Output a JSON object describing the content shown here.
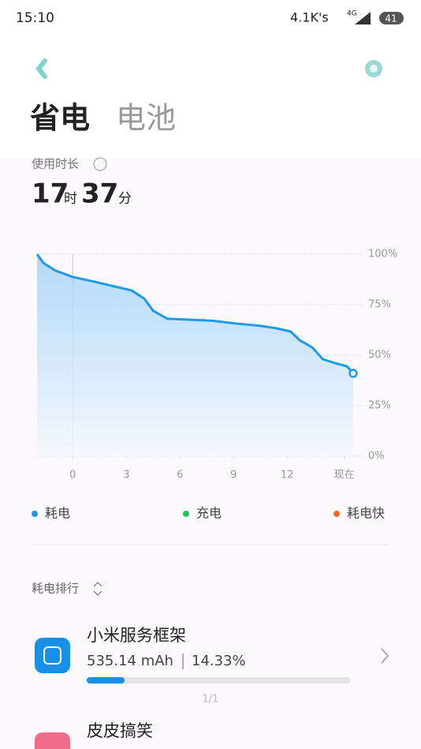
{
  "status_bar": {
    "time": "15:10",
    "speed": "4.1K's",
    "network": "4G",
    "battery": "41"
  },
  "header": {
    "title": "省电",
    "tab": "电池"
  },
  "usage": {
    "label": "使用时长",
    "hours": "17",
    "hours_unit": "时",
    "minutes": "37",
    "minutes_unit": "分"
  },
  "chart_data": {
    "type": "line",
    "x": [
      -2,
      -1.65,
      -1,
      0,
      1.24,
      2.34,
      3.3,
      4,
      4.5,
      5.3,
      6.5,
      7.85,
      9.2,
      10.5,
      11.4,
      12.2,
      12.7,
      13.4,
      14,
      14.7,
      15.35,
      15.7
    ],
    "series": [
      {
        "color": "#1e9be8",
        "values": [
          100,
          95.7,
          92,
          88.7,
          86.3,
          84,
          82,
          78,
          72,
          68,
          67.6,
          67,
          65.6,
          64.5,
          63.3,
          61.7,
          57.4,
          53.9,
          48,
          46,
          44.5,
          41
        ]
      }
    ],
    "xlim": [
      -2,
      15.7
    ],
    "ylim": [
      0,
      100
    ],
    "xticks": [
      0,
      3,
      6,
      9,
      12,
      {
        "value": 15.2,
        "label": "现在"
      }
    ],
    "yticks": [
      {
        "value": 100,
        "label": "100%"
      },
      {
        "value": 75,
        "label": "75%"
      },
      {
        "value": 50,
        "label": "50%"
      },
      {
        "value": 25,
        "label": "25%"
      },
      {
        "value": 0,
        "label": "0%"
      }
    ],
    "grid": true,
    "legend": [
      {
        "name": "耗电",
        "color": "#1e9be8"
      },
      {
        "name": "充电",
        "color": "#22c55e"
      },
      {
        "name": "耗电快",
        "color": "#f06a28"
      }
    ]
  },
  "ranking": {
    "title": "耗电排行",
    "apps": [
      {
        "name": "小米服务框架",
        "capacity": "535.14 mAh",
        "share": {
          "value": 14.33,
          "label": "14.33%"
        }
      },
      {
        "name": "皮皮搞笑"
      }
    ],
    "page": "1/1"
  }
}
